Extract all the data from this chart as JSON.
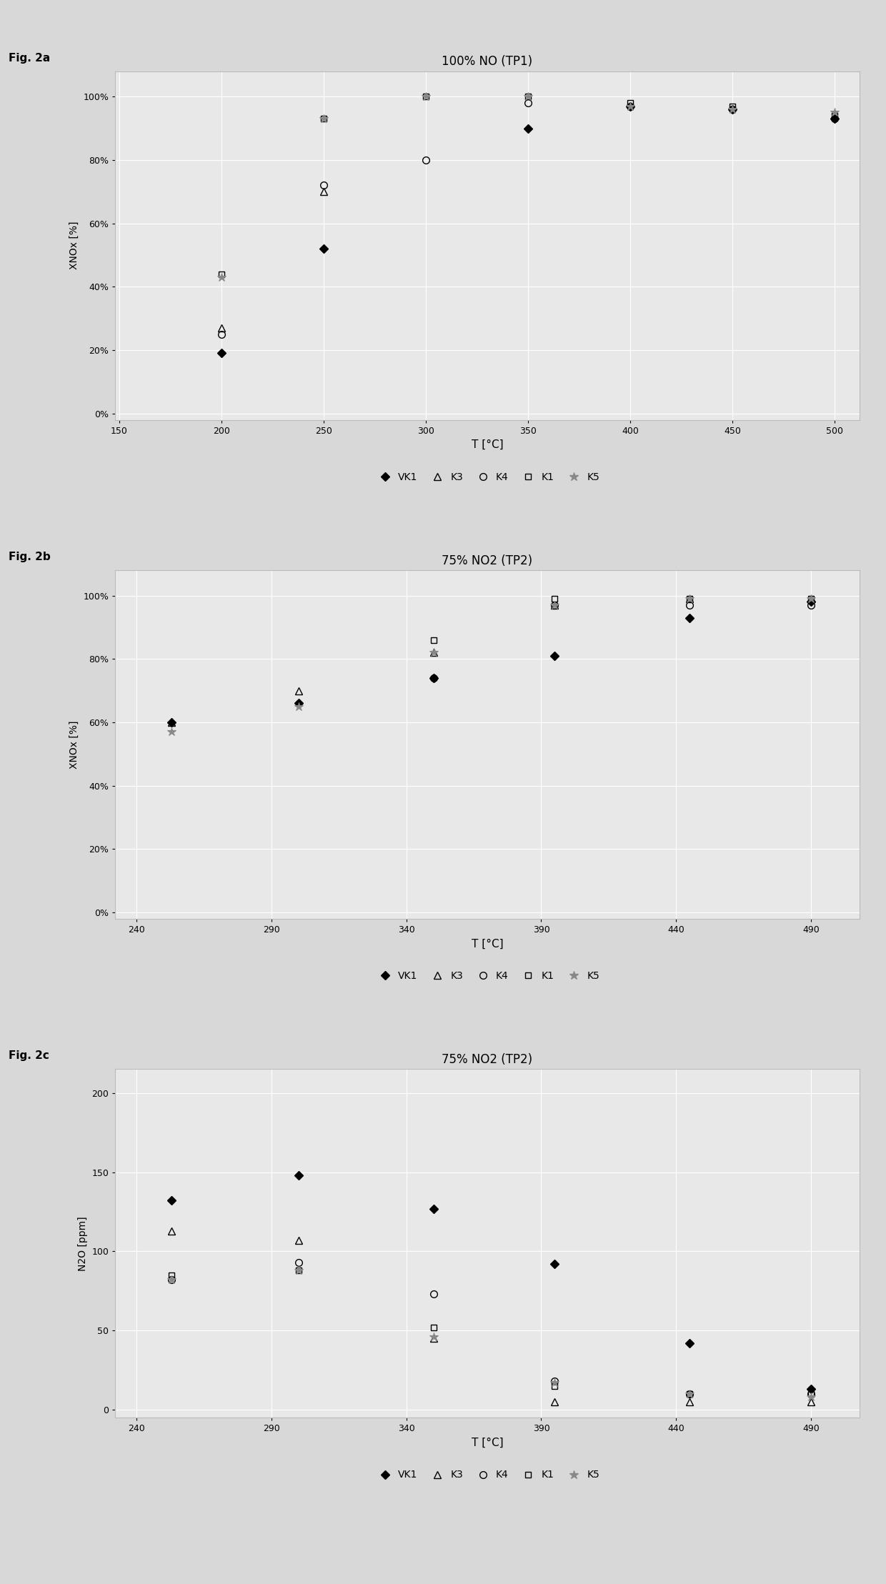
{
  "fig2a": {
    "title": "100% NO (TP1)",
    "xlabel": "T [°C]",
    "ylabel": "XNOx [%]",
    "xlim": [
      148,
      512
    ],
    "xticks": [
      150,
      200,
      250,
      300,
      350,
      400,
      450,
      500
    ],
    "ylim": [
      -0.02,
      1.08
    ],
    "yticks": [
      0.0,
      0.2,
      0.4,
      0.6,
      0.8,
      1.0
    ],
    "ytick_labels": [
      "0%",
      "20%",
      "40%",
      "60%",
      "80%",
      "100%"
    ],
    "series": {
      "VK1": {
        "T": [
          200,
          250,
          350,
          400,
          450,
          500
        ],
        "Y": [
          0.19,
          0.52,
          0.9,
          0.97,
          0.96,
          0.93
        ]
      },
      "K3": {
        "T": [
          200,
          250
        ],
        "Y": [
          0.27,
          0.7
        ]
      },
      "K4": {
        "T": [
          200,
          250,
          300,
          350,
          400,
          450,
          500
        ],
        "Y": [
          0.25,
          0.72,
          0.8,
          0.98,
          0.97,
          0.96,
          0.93
        ]
      },
      "K1": {
        "T": [
          200,
          250,
          300,
          350,
          400,
          450,
          500
        ],
        "Y": [
          0.44,
          0.93,
          1.0,
          1.0,
          0.98,
          0.97,
          0.94
        ]
      },
      "K5": {
        "T": [
          200,
          250,
          300,
          350,
          400,
          450,
          500
        ],
        "Y": [
          0.43,
          0.93,
          1.0,
          1.0,
          0.97,
          0.96,
          0.95
        ]
      }
    }
  },
  "fig2b": {
    "title": "75% NO2 (TP2)",
    "xlabel": "T [°C]",
    "ylabel": "XNOx [%]",
    "xlim": [
      232,
      508
    ],
    "xticks": [
      240,
      290,
      340,
      390,
      440,
      490
    ],
    "ylim": [
      -0.02,
      1.08
    ],
    "yticks": [
      0.0,
      0.2,
      0.4,
      0.6,
      0.8,
      1.0
    ],
    "ytick_labels": [
      "0%",
      "20%",
      "40%",
      "60%",
      "80%",
      "100%"
    ],
    "series": {
      "VK1": {
        "T": [
          253,
          300,
          350,
          395,
          445,
          490
        ],
        "Y": [
          0.6,
          0.66,
          0.74,
          0.81,
          0.93,
          0.98
        ]
      },
      "K3": {
        "T": [
          253,
          300,
          350,
          395,
          445,
          490
        ],
        "Y": [
          0.6,
          0.7,
          0.82,
          0.97,
          0.99,
          0.99
        ]
      },
      "K4": {
        "T": [
          350,
          395,
          445,
          490
        ],
        "Y": [
          0.74,
          0.97,
          0.97,
          0.97
        ]
      },
      "K1": {
        "T": [
          350,
          395,
          445,
          490
        ],
        "Y": [
          0.86,
          0.99,
          0.99,
          0.99
        ]
      },
      "K5": {
        "T": [
          253,
          300,
          350,
          395,
          445,
          490
        ],
        "Y": [
          0.57,
          0.65,
          0.82,
          0.97,
          0.99,
          0.99
        ]
      }
    }
  },
  "fig2c": {
    "title": "75% NO2 (TP2)",
    "xlabel": "T [°C]",
    "ylabel": "N2O [ppm]",
    "xlim": [
      232,
      508
    ],
    "xticks": [
      240,
      290,
      340,
      390,
      440,
      490
    ],
    "ylim": [
      -5,
      215
    ],
    "yticks": [
      0,
      50,
      100,
      150,
      200
    ],
    "ytick_labels": [
      "0",
      "50",
      "100",
      "150",
      "200"
    ],
    "series": {
      "VK1": {
        "T": [
          253,
          300,
          350,
          395,
          445,
          490
        ],
        "Y": [
          132,
          148,
          127,
          92,
          42,
          13
        ]
      },
      "K3": {
        "T": [
          253,
          300,
          350,
          395,
          445,
          490
        ],
        "Y": [
          113,
          107,
          45,
          5,
          5,
          5
        ]
      },
      "K4": {
        "T": [
          253,
          300,
          350,
          395,
          445,
          490
        ],
        "Y": [
          82,
          93,
          73,
          18,
          10,
          10
        ]
      },
      "K1": {
        "T": [
          253,
          300,
          350,
          395,
          445,
          490
        ],
        "Y": [
          85,
          88,
          52,
          15,
          10,
          10
        ]
      },
      "K5": {
        "T": [
          253,
          300,
          350,
          395,
          445,
          490
        ],
        "Y": [
          82,
          88,
          46,
          17,
          10,
          8
        ]
      }
    }
  },
  "marker_props": {
    "VK1": {
      "marker": "D",
      "color": "black",
      "mfc": "black",
      "ms": 6,
      "mew": 1.0
    },
    "K3": {
      "marker": "^",
      "color": "black",
      "mfc": "none",
      "ms": 7,
      "mew": 1.0
    },
    "K4": {
      "marker": "o",
      "color": "black",
      "mfc": "none",
      "ms": 7,
      "mew": 1.0
    },
    "K1": {
      "marker": "s",
      "color": "black",
      "mfc": "none",
      "ms": 6,
      "mew": 1.0
    },
    "K5": {
      "marker": "*",
      "color": "#888888",
      "mfc": "#888888",
      "ms": 9,
      "mew": 0.8
    }
  },
  "fig_bg": "#d8d8d8",
  "plot_bg": "#e8e8e8",
  "grid_color": "#ffffff",
  "panel_labels": [
    "Fig. 2a",
    "Fig. 2b",
    "Fig. 2c"
  ],
  "legend_entries": [
    {
      "label": "VK1",
      "marker": "D",
      "color": "black",
      "mfc": "black",
      "ms": 6
    },
    {
      "label": "K3",
      "marker": "^",
      "color": "black",
      "mfc": "none",
      "ms": 7
    },
    {
      "label": "K4",
      "marker": "o",
      "color": "black",
      "mfc": "none",
      "ms": 7
    },
    {
      "label": "K1",
      "marker": "s",
      "color": "black",
      "mfc": "none",
      "ms": 6
    },
    {
      "label": "K5",
      "marker": "*",
      "color": "#888888",
      "mfc": "#888888",
      "ms": 9
    }
  ]
}
